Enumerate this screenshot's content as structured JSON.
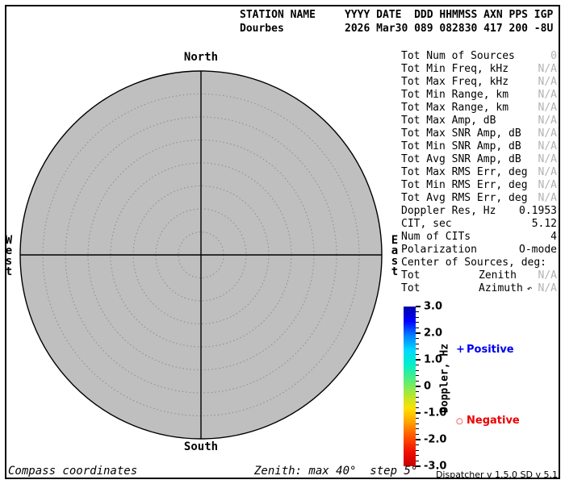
{
  "header": {
    "station_label": "STATION NAME",
    "station_value": "Dourbes",
    "fields_label": "YYYY DATE  DDD HHMMSS AXN PPS IGP",
    "fields_value": "2026 Mar30 089 082830 417 200 -8U"
  },
  "compass": {
    "north": "North",
    "south": "South",
    "west": "West",
    "east": "East"
  },
  "plot": {
    "fill": "#bfbfbf",
    "outline_color": "#000000",
    "ring_color": "#8c8c8c",
    "zenith_max_deg": 40,
    "zenith_step_deg": 5
  },
  "stats": {
    "rows": [
      {
        "label": "Tot Num of Sources",
        "value": "0",
        "muted": true
      },
      {
        "label": "Tot Min Freq, kHz",
        "value": "N/A",
        "muted": true
      },
      {
        "label": "Tot Max Freq, kHz",
        "value": "N/A",
        "muted": true
      },
      {
        "label": "Tot Min Range, km",
        "value": "N/A",
        "muted": true
      },
      {
        "label": "Tot Max Range, km",
        "value": "N/A",
        "muted": true
      },
      {
        "label": "Tot Max Amp, dB",
        "value": "N/A",
        "muted": true
      },
      {
        "label": "Tot Max SNR Amp, dB",
        "value": "N/A",
        "muted": true
      },
      {
        "label": "Tot Min SNR Amp, dB",
        "value": "N/A",
        "muted": true
      },
      {
        "label": "Tot Avg SNR Amp, dB",
        "value": "N/A",
        "muted": true
      },
      {
        "label": "Tot Max RMS Err, deg",
        "value": "N/A",
        "muted": true
      },
      {
        "label": "Tot Min RMS Err, deg",
        "value": "N/A",
        "muted": true
      },
      {
        "label": "Tot Avg RMS Err, deg",
        "value": "N/A",
        "muted": true
      },
      {
        "label": "Doppler Res, Hz",
        "value": "0.1953",
        "muted": false
      },
      {
        "label": "CIT, sec",
        "value": "5.12",
        "muted": false
      },
      {
        "label": "Num of CITs",
        "value": "4",
        "muted": false
      },
      {
        "label": "Polarization",
        "value": "O-mode",
        "muted": false
      },
      {
        "label": "Center of Sources, deg:",
        "value": "",
        "muted": false
      },
      {
        "label": "Tot",
        "mid": "Zenith",
        "value": "N/A",
        "muted": true
      },
      {
        "label": "Tot",
        "mid": "Azimuth",
        "icon": "↶",
        "value": "N/A",
        "muted": true
      }
    ]
  },
  "colorbar": {
    "title": "Doppler, Hz",
    "min": -3.0,
    "max": 3.0,
    "minor_step": 0.2,
    "major_labels": [
      {
        "v": 3,
        "label": "3.0"
      },
      {
        "v": 2,
        "label": "2.0"
      },
      {
        "v": 1,
        "label": "1.0"
      },
      {
        "v": 0,
        "label": "0"
      },
      {
        "v": -1,
        "label": "-1.0"
      },
      {
        "v": -2,
        "label": "-2.0"
      },
      {
        "v": -3,
        "label": "-3.0"
      }
    ],
    "gradient": [
      "#0000a8",
      "#0000ff",
      "#0080ff",
      "#00d8ff",
      "#00f0c8",
      "#50ee80",
      "#a8e838",
      "#ffe000",
      "#ffa000",
      "#ff5000",
      "#f01000",
      "#c80000"
    ]
  },
  "legend": {
    "positive": {
      "symbol": "+",
      "label": "Positive",
      "color": "#0000f0"
    },
    "negative": {
      "symbol": "○",
      "label": "Negative",
      "color": "#ee0000"
    }
  },
  "footer": {
    "coords_note": "Compass coordinates",
    "zenith_note": "Zenith: max 40°  step 5°",
    "version": "Dispatcher v 1.5.0  SD v 5.1"
  }
}
